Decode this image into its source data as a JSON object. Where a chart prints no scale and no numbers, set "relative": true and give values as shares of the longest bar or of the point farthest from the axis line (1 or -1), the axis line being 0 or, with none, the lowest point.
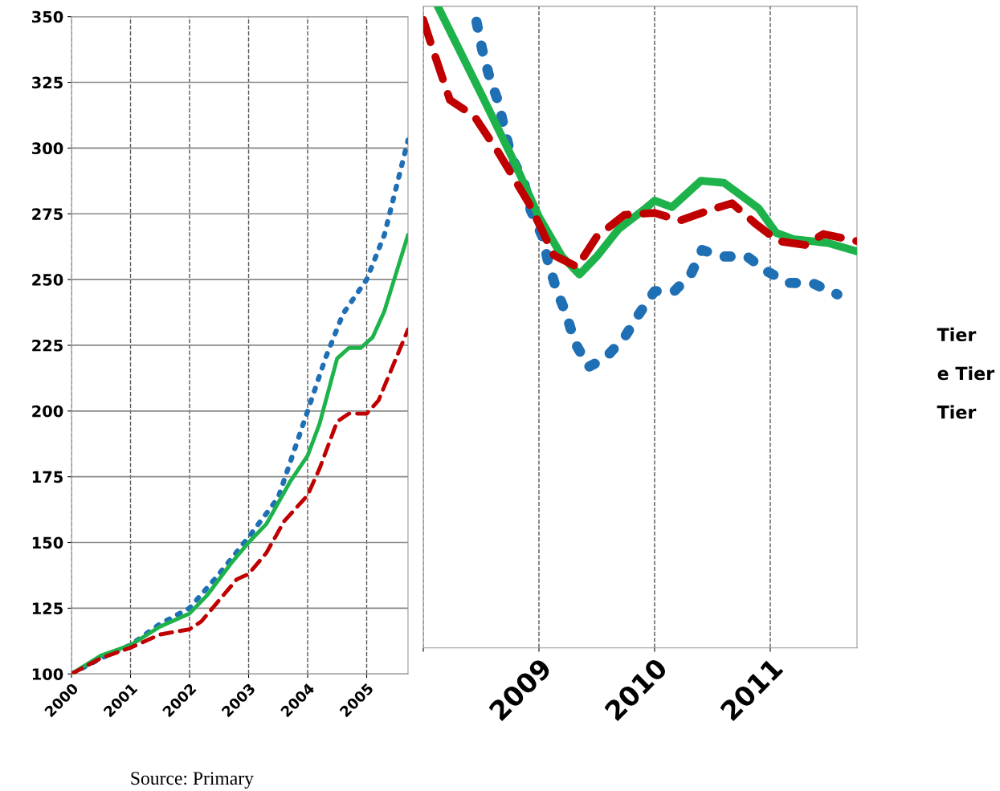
{
  "chart_data": [
    {
      "type": "line",
      "xlim": [
        2000,
        2005.7
      ],
      "xticks": [
        2000,
        2001,
        2002,
        2003,
        2004,
        2005
      ],
      "ylim": [
        100,
        350
      ],
      "yticks": [
        100,
        125,
        150,
        175,
        200,
        225,
        250,
        275,
        300,
        325,
        350
      ],
      "grid": true,
      "legend": false,
      "marker": "none",
      "annotations": [
        "Source: Primary"
      ],
      "series": [
        {
          "color": "#1f6fb5",
          "line_style": "dotted",
          "x": [
            2000,
            2000.5,
            2001,
            2001.5,
            2002,
            2002.5,
            2003,
            2003.5,
            2004,
            2004.3,
            2004.6,
            2005,
            2005.3,
            2005.7
          ],
          "values": [
            100,
            106,
            111,
            119,
            125,
            138,
            152,
            167,
            200,
            220,
            237,
            250,
            267,
            303
          ]
        },
        {
          "color": "#1db34a",
          "line_style": "solid",
          "x": [
            2000,
            2000.5,
            2001,
            2001.5,
            2002,
            2002.3,
            2002.7,
            2003,
            2003.3,
            2003.7,
            2004,
            2004.2,
            2004.5,
            2004.7,
            2004.9,
            2005.1,
            2005.3,
            2005.7
          ],
          "values": [
            100,
            107,
            111,
            118,
            123,
            130,
            142,
            150,
            157,
            173,
            183,
            195,
            220,
            224,
            224,
            228,
            238,
            267
          ]
        },
        {
          "color": "#c00000",
          "line_style": "dashed",
          "x": [
            2000,
            2000.5,
            2001,
            2001.5,
            2002,
            2002.2,
            2002.5,
            2002.8,
            2003,
            2003.3,
            2003.6,
            2004,
            2004.2,
            2004.5,
            2004.7,
            2005,
            2005.2,
            2005.7
          ],
          "values": [
            100,
            106,
            110,
            115,
            117,
            120,
            128,
            136,
            138,
            146,
            158,
            168,
            178,
            196,
            199,
            199,
            204,
            231
          ]
        }
      ]
    },
    {
      "type": "line",
      "relative": true,
      "xlim": [
        2008,
        2011.75
      ],
      "xticks": [
        {
          "value": 2008,
          "label": null
        },
        2009,
        2010,
        2011
      ],
      "grid": "x",
      "legend": false,
      "marker": "none",
      "annotations": [
        "Tier",
        "e Tier",
        "Tier"
      ],
      "series": [
        {
          "color": "#1f6fb5",
          "line_style": "dotted",
          "x": [
            2008.46,
            2008.51,
            2008.57,
            2008.65,
            2008.7,
            2008.76,
            2008.87,
            2008.93,
            2009.03,
            2009.08,
            2009.15,
            2009.24,
            2009.31,
            2009.43,
            2009.57,
            2009.74,
            2009.86,
            2010,
            2010.17,
            2010.31,
            2010.41,
            2010.6,
            2010.8,
            2010.97,
            2011.16,
            2011.37,
            2011.58
          ],
          "values": [
            0.976,
            0.932,
            0.891,
            0.85,
            0.81,
            0.766,
            0.726,
            0.682,
            0.641,
            0.601,
            0.559,
            0.518,
            0.476,
            0.438,
            0.451,
            0.484,
            0.519,
            0.556,
            0.556,
            0.581,
            0.62,
            0.61,
            0.61,
            0.587,
            0.569,
            0.568,
            0.551
          ]
        },
        {
          "color": "#1db34a",
          "line_style": "solid",
          "x": [
            2008.125,
            2008.51,
            2008.78,
            2009,
            2009.2,
            2009.35,
            2009.5,
            2009.69,
            2009.9,
            2010,
            2010.15,
            2010.4,
            2010.6,
            2010.9,
            2011.05,
            2011.2,
            2011.5,
            2011.75
          ],
          "values": [
            1.0,
            0.86,
            0.76,
            0.672,
            0.61,
            0.582,
            0.61,
            0.653,
            0.682,
            0.697,
            0.687,
            0.728,
            0.725,
            0.685,
            0.647,
            0.637,
            0.631,
            0.618
          ]
        },
        {
          "color": "#c00000",
          "line_style": "dashed",
          "x": [
            2008,
            2008.09,
            2008.23,
            2008.44,
            2008.65,
            2008.92,
            2009.13,
            2009.33,
            2009.5,
            2009.74,
            2010,
            2010.22,
            2010.47,
            2010.67,
            2010.88,
            2011.07,
            2011.3,
            2011.46,
            2011.75
          ],
          "values": [
            0.979,
            0.929,
            0.854,
            0.829,
            0.772,
            0.691,
            0.612,
            0.594,
            0.641,
            0.675,
            0.678,
            0.666,
            0.682,
            0.693,
            0.66,
            0.634,
            0.628,
            0.645,
            0.634
          ]
        }
      ]
    }
  ]
}
